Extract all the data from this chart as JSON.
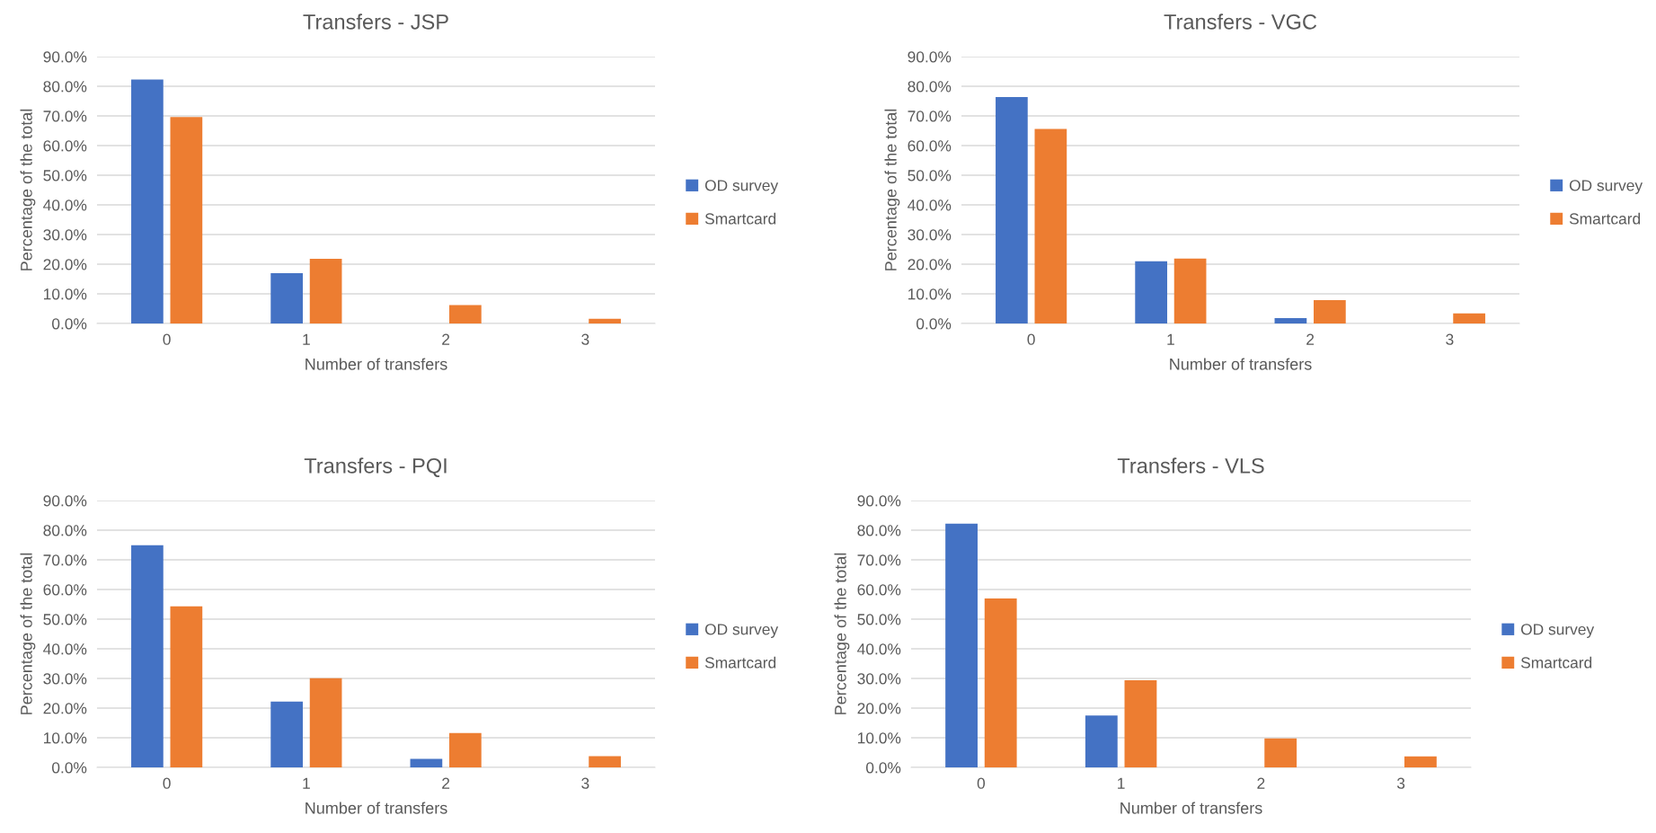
{
  "chart_data": [
    {
      "type": "bar",
      "title": "Transfers - JSP",
      "xlabel": "Number of transfers",
      "ylabel": "Percentage of the total",
      "categories": [
        "0",
        "1",
        "2",
        "3"
      ],
      "series": [
        {
          "name": "OD survey",
          "color": "#4472c4",
          "values": [
            82.3,
            17.0,
            0,
            0
          ]
        },
        {
          "name": "Smartcard",
          "color": "#ed7d31",
          "values": [
            69.6,
            21.8,
            6.2,
            1.6
          ]
        }
      ],
      "ylim": [
        0,
        90
      ],
      "yticks": [
        {
          "value": 0,
          "label": "0.0%"
        },
        {
          "value": 10,
          "label": "10.0%"
        },
        {
          "value": 20,
          "label": "20.0%"
        },
        {
          "value": 30,
          "label": "30.0%"
        },
        {
          "value": 40,
          "label": "40.0%"
        },
        {
          "value": 50,
          "label": "50.0%"
        },
        {
          "value": 60,
          "label": "60.0%"
        },
        {
          "value": 70,
          "label": "70.0%"
        },
        {
          "value": 80,
          "label": "80.0%"
        },
        {
          "value": 90,
          "label": "90.0%"
        }
      ],
      "grid": "y",
      "legend": "right"
    },
    {
      "type": "bar",
      "title": "Transfers - VGC",
      "xlabel": "Number of transfers",
      "ylabel": "Percentage of the total",
      "categories": [
        "0",
        "1",
        "2",
        "3"
      ],
      "series": [
        {
          "name": "OD survey",
          "color": "#4472c4",
          "values": [
            76.4,
            21.0,
            1.8,
            0
          ]
        },
        {
          "name": "Smartcard",
          "color": "#ed7d31",
          "values": [
            65.6,
            21.9,
            7.9,
            3.4
          ]
        }
      ],
      "ylim": [
        0,
        90
      ],
      "yticks": [
        {
          "value": 0,
          "label": "0.0%"
        },
        {
          "value": 10,
          "label": "10.0%"
        },
        {
          "value": 20,
          "label": "20.0%"
        },
        {
          "value": 30,
          "label": "30.0%"
        },
        {
          "value": 40,
          "label": "40.0%"
        },
        {
          "value": 50,
          "label": "50.0%"
        },
        {
          "value": 60,
          "label": "60.0%"
        },
        {
          "value": 70,
          "label": "70.0%"
        },
        {
          "value": 80,
          "label": "80.0%"
        },
        {
          "value": 90,
          "label": "90.0%"
        }
      ],
      "grid": "y",
      "legend": "right"
    },
    {
      "type": "bar",
      "title": "Transfers - PQI",
      "xlabel": "Number of transfers",
      "ylabel": "Percentage of the total",
      "categories": [
        "0",
        "1",
        "2",
        "3"
      ],
      "series": [
        {
          "name": "OD survey",
          "color": "#4472c4",
          "values": [
            74.9,
            22.2,
            2.9,
            0
          ]
        },
        {
          "name": "Smartcard",
          "color": "#ed7d31",
          "values": [
            54.3,
            30.1,
            11.6,
            3.8
          ]
        }
      ],
      "ylim": [
        0,
        90
      ],
      "yticks": [
        {
          "value": 0,
          "label": "0.0%"
        },
        {
          "value": 10,
          "label": "10.0%"
        },
        {
          "value": 20,
          "label": "20.0%"
        },
        {
          "value": 30,
          "label": "30.0%"
        },
        {
          "value": 40,
          "label": "40.0%"
        },
        {
          "value": 50,
          "label": "50.0%"
        },
        {
          "value": 60,
          "label": "60.0%"
        },
        {
          "value": 70,
          "label": "70.0%"
        },
        {
          "value": 80,
          "label": "80.0%"
        },
        {
          "value": 90,
          "label": "90.0%"
        }
      ],
      "grid": "y",
      "legend": "right"
    },
    {
      "type": "bar",
      "title": "Transfers - VLS",
      "xlabel": "Number of transfers",
      "ylabel": "Percentage of the total",
      "categories": [
        "0",
        "1",
        "2",
        "3"
      ],
      "series": [
        {
          "name": "OD survey",
          "color": "#4472c4",
          "values": [
            82.2,
            17.5,
            0,
            0
          ]
        },
        {
          "name": "Smartcard",
          "color": "#ed7d31",
          "values": [
            57.0,
            29.4,
            9.8,
            3.7
          ]
        }
      ],
      "ylim": [
        0,
        90
      ],
      "yticks": [
        {
          "value": 0,
          "label": "0.0%"
        },
        {
          "value": 10,
          "label": "10.0%"
        },
        {
          "value": 20,
          "label": "20.0%"
        },
        {
          "value": 30,
          "label": "30.0%"
        },
        {
          "value": 40,
          "label": "40.0%"
        },
        {
          "value": 50,
          "label": "50.0%"
        },
        {
          "value": 60,
          "label": "60.0%"
        },
        {
          "value": 70,
          "label": "70.0%"
        },
        {
          "value": 80,
          "label": "80.0%"
        },
        {
          "value": 90,
          "label": "90.0%"
        }
      ],
      "grid": "y",
      "legend": "right"
    }
  ]
}
